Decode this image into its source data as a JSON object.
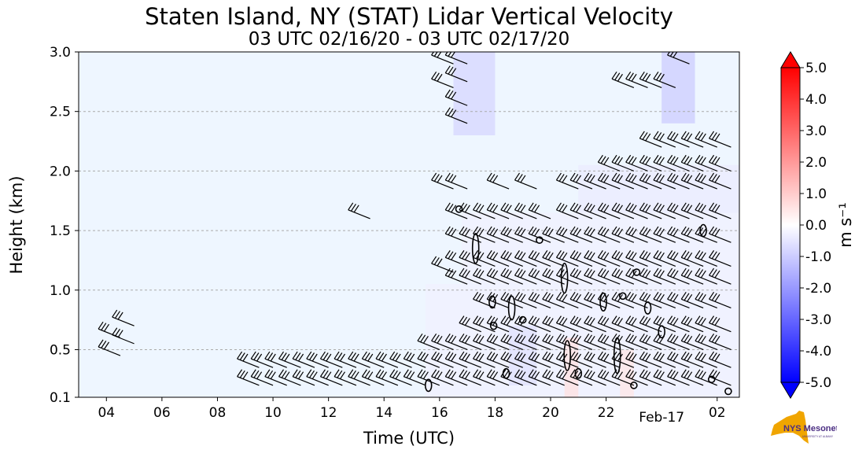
{
  "title": "Staten Island, NY (STAT) Lidar Vertical Velocity",
  "subtitle": "03 UTC 02/16/20 - 03 UTC 02/17/20",
  "logo": {
    "name": "NYS Mesonet",
    "text": "NYS Mesonet",
    "subtext": "UNIVERSITY AT ALBANY",
    "color": "#4b2e83",
    "map_color": "#f0a500"
  },
  "chart_data": {
    "type": "heatmap",
    "title": "Staten Island, NY (STAT) Lidar Vertical Velocity",
    "subtitle": "03 UTC 02/16/20 - 03 UTC 02/17/20",
    "xlabel": "Time (UTC)",
    "ylabel": "Height (km)",
    "xlim_hours": [
      3,
      26.8
    ],
    "ylim": [
      0.1,
      3.0
    ],
    "xticks": [
      {
        "hour": 4,
        "label": "04"
      },
      {
        "hour": 6,
        "label": "06"
      },
      {
        "hour": 8,
        "label": "08"
      },
      {
        "hour": 10,
        "label": "10"
      },
      {
        "hour": 12,
        "label": "12"
      },
      {
        "hour": 14,
        "label": "14"
      },
      {
        "hour": 16,
        "label": "16"
      },
      {
        "hour": 18,
        "label": "18"
      },
      {
        "hour": 20,
        "label": "20"
      },
      {
        "hour": 22,
        "label": "22"
      },
      {
        "hour": 26,
        "label": "02"
      }
    ],
    "date_label": {
      "hour": 24,
      "label": "Feb-17"
    },
    "yticks": [
      0.1,
      0.5,
      1.0,
      1.5,
      2.0,
      2.5,
      3.0
    ],
    "ytick_labels": [
      "0.1",
      "0.5",
      "1.0",
      "1.5",
      "2.0",
      "2.5",
      "3.0"
    ],
    "grid": "horizontal dashed",
    "colorbar": {
      "label": "m s⁻¹",
      "min": -5.0,
      "max": 5.0,
      "ticks": [
        "5.0",
        "4.0",
        "3.0",
        "2.0",
        "1.0",
        "0.0",
        "-1.0",
        "-2.0",
        "-3.0",
        "-4.0",
        "-5.0"
      ],
      "colormap": "bwr",
      "extend": "both"
    },
    "background_value": -0.3,
    "data_regions": [
      {
        "t0": 15.5,
        "t1": 26.8,
        "z0": 0.1,
        "z1": 1.05,
        "value": -0.3
      },
      {
        "t0": 16.8,
        "t1": 26.8,
        "z0": 1.05,
        "z1": 1.65,
        "value": -0.3
      },
      {
        "t0": 21.0,
        "t1": 26.8,
        "z0": 1.65,
        "z1": 2.05,
        "value": -0.4
      },
      {
        "t0": 16.5,
        "t1": 18.0,
        "z0": 2.3,
        "z1": 3.0,
        "value": -0.8
      },
      {
        "t0": 24.0,
        "t1": 25.2,
        "z0": 2.4,
        "z1": 3.0,
        "value": -1.0
      },
      {
        "t0": 20.5,
        "t1": 21.0,
        "z0": 0.1,
        "z1": 0.6,
        "value": 0.6
      },
      {
        "t0": 22.5,
        "t1": 23.0,
        "z0": 0.1,
        "z1": 0.5,
        "value": 0.5
      },
      {
        "t0": 18.5,
        "t1": 19.5,
        "z0": 0.2,
        "z1": 0.7,
        "value": -0.6
      }
    ],
    "wind_barbs": [
      {
        "hour": 4.5,
        "heights": [
          0.45,
          0.6
        ]
      },
      {
        "hour": 5.0,
        "heights": [
          0.55,
          0.7
        ]
      },
      {
        "hour": 9.5,
        "heights": [
          0.2,
          0.35
        ]
      },
      {
        "hour": 10.0,
        "heights": [
          0.2,
          0.35
        ]
      },
      {
        "hour": 10.5,
        "heights": [
          0.2,
          0.35
        ]
      },
      {
        "hour": 11.0,
        "heights": [
          0.2,
          0.35
        ]
      },
      {
        "hour": 11.5,
        "heights": [
          0.2,
          0.35
        ]
      },
      {
        "hour": 12.0,
        "heights": [
          0.2,
          0.35
        ]
      },
      {
        "hour": 12.5,
        "heights": [
          0.2,
          0.35
        ]
      },
      {
        "hour": 13.0,
        "heights": [
          0.2,
          0.35
        ]
      },
      {
        "hour": 13.5,
        "heights": [
          0.2,
          0.35,
          1.6
        ]
      },
      {
        "hour": 14.0,
        "heights": [
          0.2,
          0.35
        ]
      },
      {
        "hour": 14.5,
        "heights": [
          0.2,
          0.35
        ]
      },
      {
        "hour": 15.0,
        "heights": [
          0.2,
          0.35
        ]
      },
      {
        "hour": 15.5,
        "heights": [
          0.2,
          0.35
        ]
      },
      {
        "hour": 16.0,
        "heights": [
          0.2,
          0.35,
          0.5
        ]
      },
      {
        "hour": 16.5,
        "heights": [
          0.2,
          0.35,
          0.5,
          1.15,
          1.85,
          2.7,
          2.9
        ]
      },
      {
        "hour": 17.0,
        "heights": [
          0.2,
          0.35,
          0.5,
          1.05,
          1.2,
          1.4,
          1.6,
          1.85,
          2.4,
          2.55,
          2.75,
          2.9
        ]
      },
      {
        "hour": 17.5,
        "heights": [
          0.2,
          0.35,
          0.5,
          0.65,
          1.05,
          1.2,
          1.4,
          1.6
        ]
      },
      {
        "hour": 18.0,
        "heights": [
          0.2,
          0.35,
          0.5,
          0.65,
          0.85,
          1.05,
          1.2,
          1.4,
          1.6
        ]
      },
      {
        "hour": 18.5,
        "heights": [
          0.2,
          0.35,
          0.5,
          0.65,
          0.85,
          1.05,
          1.2,
          1.4,
          1.6,
          1.85
        ]
      },
      {
        "hour": 19.0,
        "heights": [
          0.2,
          0.35,
          0.5,
          0.65,
          0.85,
          1.05,
          1.2,
          1.4,
          1.6
        ]
      },
      {
        "hour": 19.5,
        "heights": [
          0.2,
          0.35,
          0.5,
          0.65,
          0.85,
          1.05,
          1.2,
          1.4,
          1.6,
          1.85
        ]
      },
      {
        "hour": 20.0,
        "heights": [
          0.2,
          0.35,
          0.5,
          0.65,
          0.85,
          1.05,
          1.2,
          1.4,
          1.6
        ]
      },
      {
        "hour": 20.5,
        "heights": [
          0.2,
          0.35,
          0.5,
          0.65,
          0.85,
          1.05,
          1.2,
          1.4
        ]
      },
      {
        "hour": 21.0,
        "heights": [
          0.2,
          0.35,
          0.5,
          0.65,
          0.85,
          1.05,
          1.2,
          1.4,
          1.6,
          1.85
        ]
      },
      {
        "hour": 21.5,
        "heights": [
          0.2,
          0.35,
          0.5,
          0.65,
          0.85,
          1.05,
          1.2,
          1.4,
          1.6,
          1.85
        ]
      },
      {
        "hour": 22.0,
        "heights": [
          0.2,
          0.35,
          0.5,
          0.65,
          0.85,
          1.05,
          1.2,
          1.4,
          1.6,
          1.85
        ]
      },
      {
        "hour": 22.5,
        "heights": [
          0.2,
          0.35,
          0.5,
          0.65,
          0.85,
          1.05,
          1.2,
          1.4,
          1.6,
          1.85,
          2.0
        ]
      },
      {
        "hour": 23.0,
        "heights": [
          0.2,
          0.35,
          0.5,
          0.65,
          0.85,
          1.05,
          1.2,
          1.4,
          1.6,
          1.85,
          2.0,
          2.7
        ]
      },
      {
        "hour": 23.5,
        "heights": [
          0.2,
          0.35,
          0.5,
          0.65,
          0.85,
          1.05,
          1.2,
          1.4,
          1.6,
          1.85,
          2.0,
          2.7
        ]
      },
      {
        "hour": 24.0,
        "heights": [
          0.2,
          0.35,
          0.5,
          0.65,
          0.85,
          1.05,
          1.2,
          1.4,
          1.6,
          1.85,
          2.0,
          2.2,
          2.7
        ]
      },
      {
        "hour": 24.5,
        "heights": [
          0.2,
          0.35,
          0.5,
          0.65,
          0.85,
          1.05,
          1.2,
          1.4,
          1.6,
          1.85,
          2.0,
          2.2,
          2.7
        ]
      },
      {
        "hour": 25.0,
        "heights": [
          0.2,
          0.35,
          0.5,
          0.65,
          0.85,
          1.05,
          1.2,
          1.4,
          1.6,
          1.85,
          2.0,
          2.2,
          2.9
        ]
      },
      {
        "hour": 25.5,
        "heights": [
          0.2,
          0.35,
          0.5,
          0.65,
          0.85,
          1.05,
          1.2,
          1.4,
          1.6,
          1.85,
          2.0,
          2.2
        ]
      },
      {
        "hour": 26.0,
        "heights": [
          0.2,
          0.35,
          0.5,
          0.65,
          0.85,
          1.05,
          1.2,
          1.4,
          1.6,
          1.85,
          2.0,
          2.2
        ]
      },
      {
        "hour": 26.5,
        "heights": [
          0.2,
          0.35,
          0.5,
          0.65,
          0.85,
          1.05,
          1.2,
          1.4,
          1.6,
          1.85,
          2.0,
          2.2
        ]
      }
    ],
    "contours": [
      {
        "t": 17.3,
        "z": 1.35,
        "dz": 0.25
      },
      {
        "t": 17.9,
        "z": 0.9,
        "dz": 0.1
      },
      {
        "t": 17.95,
        "z": 0.7,
        "dz": 0.06
      },
      {
        "t": 16.7,
        "z": 1.68,
        "dz": 0.05
      },
      {
        "t": 18.6,
        "z": 0.85,
        "dz": 0.2
      },
      {
        "t": 19.6,
        "z": 1.42,
        "dz": 0.05
      },
      {
        "t": 19.0,
        "z": 0.75,
        "dz": 0.05
      },
      {
        "t": 20.5,
        "z": 1.1,
        "dz": 0.25
      },
      {
        "t": 20.6,
        "z": 0.45,
        "dz": 0.25
      },
      {
        "t": 21.9,
        "z": 0.9,
        "dz": 0.15
      },
      {
        "t": 22.4,
        "z": 0.45,
        "dz": 0.3
      },
      {
        "t": 22.6,
        "z": 0.95,
        "dz": 0.05
      },
      {
        "t": 23.1,
        "z": 1.15,
        "dz": 0.05
      },
      {
        "t": 23.5,
        "z": 0.85,
        "dz": 0.1
      },
      {
        "t": 24.0,
        "z": 0.65,
        "dz": 0.1
      },
      {
        "t": 25.5,
        "z": 1.5,
        "dz": 0.1
      },
      {
        "t": 15.6,
        "z": 0.2,
        "dz": 0.1
      },
      {
        "t": 23.0,
        "z": 0.2,
        "dz": 0.05
      },
      {
        "t": 25.8,
        "z": 0.25,
        "dz": 0.05
      },
      {
        "t": 26.4,
        "z": 0.15,
        "dz": 0.05
      },
      {
        "t": 18.4,
        "z": 0.3,
        "dz": 0.08
      },
      {
        "t": 21.0,
        "z": 0.3,
        "dz": 0.08
      }
    ]
  }
}
